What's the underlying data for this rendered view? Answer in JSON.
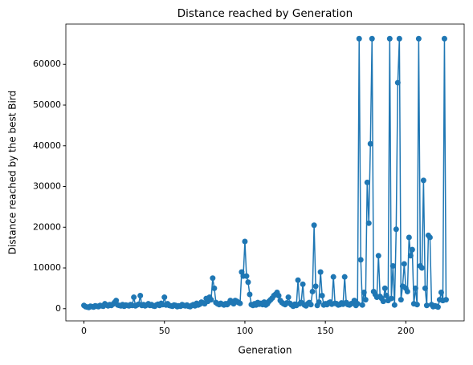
{
  "chart_data": {
    "type": "line",
    "title": "Distance reached by Generation",
    "x_label": "Generation",
    "y_label": "Distance reached by the best Bird",
    "x": [
      0,
      1,
      2,
      3,
      4,
      5,
      6,
      7,
      8,
      9,
      10,
      11,
      12,
      13,
      14,
      15,
      16,
      17,
      18,
      19,
      20,
      21,
      22,
      23,
      24,
      25,
      26,
      27,
      28,
      29,
      30,
      31,
      32,
      33,
      34,
      35,
      36,
      37,
      38,
      39,
      40,
      41,
      42,
      43,
      44,
      45,
      46,
      47,
      48,
      49,
      50,
      51,
      52,
      53,
      54,
      55,
      56,
      57,
      58,
      59,
      60,
      61,
      62,
      63,
      64,
      65,
      66,
      67,
      68,
      69,
      70,
      71,
      72,
      73,
      74,
      75,
      76,
      77,
      78,
      79,
      80,
      81,
      82,
      83,
      84,
      85,
      86,
      87,
      88,
      89,
      90,
      91,
      92,
      93,
      94,
      95,
      96,
      97,
      98,
      99,
      100,
      101,
      102,
      103,
      104,
      105,
      106,
      107,
      108,
      109,
      110,
      111,
      112,
      113,
      114,
      115,
      116,
      117,
      118,
      119,
      120,
      121,
      122,
      123,
      124,
      125,
      126,
      127,
      128,
      129,
      130,
      131,
      132,
      133,
      134,
      135,
      136,
      137,
      138,
      139,
      140,
      141,
      142,
      143,
      144,
      145,
      146,
      147,
      148,
      149,
      150,
      151,
      152,
      153,
      154,
      155,
      156,
      157,
      158,
      159,
      160,
      161,
      162,
      163,
      164,
      165,
      166,
      167,
      168,
      169,
      170,
      171,
      172,
      173,
      174,
      175,
      176,
      177,
      178,
      179,
      180,
      181,
      182,
      183,
      184,
      185,
      186,
      187,
      188,
      189,
      190,
      191,
      192,
      193,
      194,
      195,
      196,
      197,
      198,
      199,
      200,
      201,
      202,
      203,
      204,
      205,
      206,
      207,
      208,
      209,
      210,
      211,
      212,
      213,
      214,
      215,
      216,
      217,
      218,
      219,
      220,
      221,
      222,
      223,
      224,
      225
    ],
    "series": [
      {
        "color": "#1f77b4",
        "values": [
          800,
          500,
          400,
          300,
          600,
          500,
          400,
          700,
          600,
          500,
          800,
          700,
          600,
          1200,
          900,
          700,
          1000,
          800,
          1100,
          1500,
          2000,
          900,
          800,
          700,
          1000,
          600,
          900,
          800,
          700,
          1000,
          800,
          2800,
          700,
          900,
          1100,
          3200,
          800,
          1000,
          700,
          900,
          1200,
          800,
          1000,
          700,
          600,
          900,
          1100,
          800,
          1300,
          1000,
          2800,
          900,
          1200,
          800,
          700,
          600,
          900,
          800,
          500,
          700,
          600,
          1000,
          800,
          700,
          900,
          600,
          500,
          800,
          1000,
          700,
          1300,
          900,
          1100,
          1600,
          1400,
          1200,
          2500,
          1800,
          2800,
          2200,
          7500,
          5000,
          1500,
          1200,
          1000,
          1300,
          1100,
          900,
          1200,
          1000,
          1400,
          2000,
          1600,
          1200,
          2000,
          1800,
          1500,
          1300,
          9000,
          8000,
          16500,
          8000,
          6500,
          3500,
          1000,
          800,
          1200,
          900,
          1500,
          1100,
          1300,
          1000,
          1600,
          900,
          1200,
          1800,
          2200,
          2600,
          3200,
          3500,
          4000,
          3200,
          2000,
          1500,
          1200,
          1000,
          1400,
          2800,
          1300,
          900,
          600,
          1100,
          800,
          7000,
          1200,
          1500,
          6000,
          900,
          700,
          1200,
          1500,
          1000,
          4200,
          20500,
          5500,
          800,
          1600,
          9000,
          3200,
          900,
          1200,
          1000,
          1400,
          1600,
          1100,
          7800,
          1300,
          1200,
          900,
          1000,
          1400,
          1100,
          7800,
          1500,
          1000,
          900,
          1200,
          1300,
          2000,
          800,
          1200,
          66300,
          12000,
          900,
          4000,
          2200,
          31000,
          21000,
          40500,
          66300,
          4200,
          3500,
          2800,
          13000,
          3000,
          2500,
          1800,
          5000,
          3200,
          2000,
          66300,
          2500,
          10500,
          900,
          19500,
          55500,
          66300,
          2200,
          5500,
          11000,
          5000,
          4200,
          17500,
          13000,
          14500,
          1200,
          5000,
          1000,
          66300,
          10500,
          10000,
          31500,
          5000,
          800,
          18000,
          17500,
          1000,
          500,
          700,
          600,
          400,
          2200,
          4000,
          2000,
          66300,
          2200
        ]
      }
    ],
    "xlim": [
      -11.25,
      236.25
    ],
    "xticks": [
      0,
      50,
      100,
      150,
      200
    ],
    "ylim": [
      -3000,
      69900
    ],
    "yticks": [
      0,
      10000,
      20000,
      30000,
      40000,
      50000,
      60000
    ]
  }
}
